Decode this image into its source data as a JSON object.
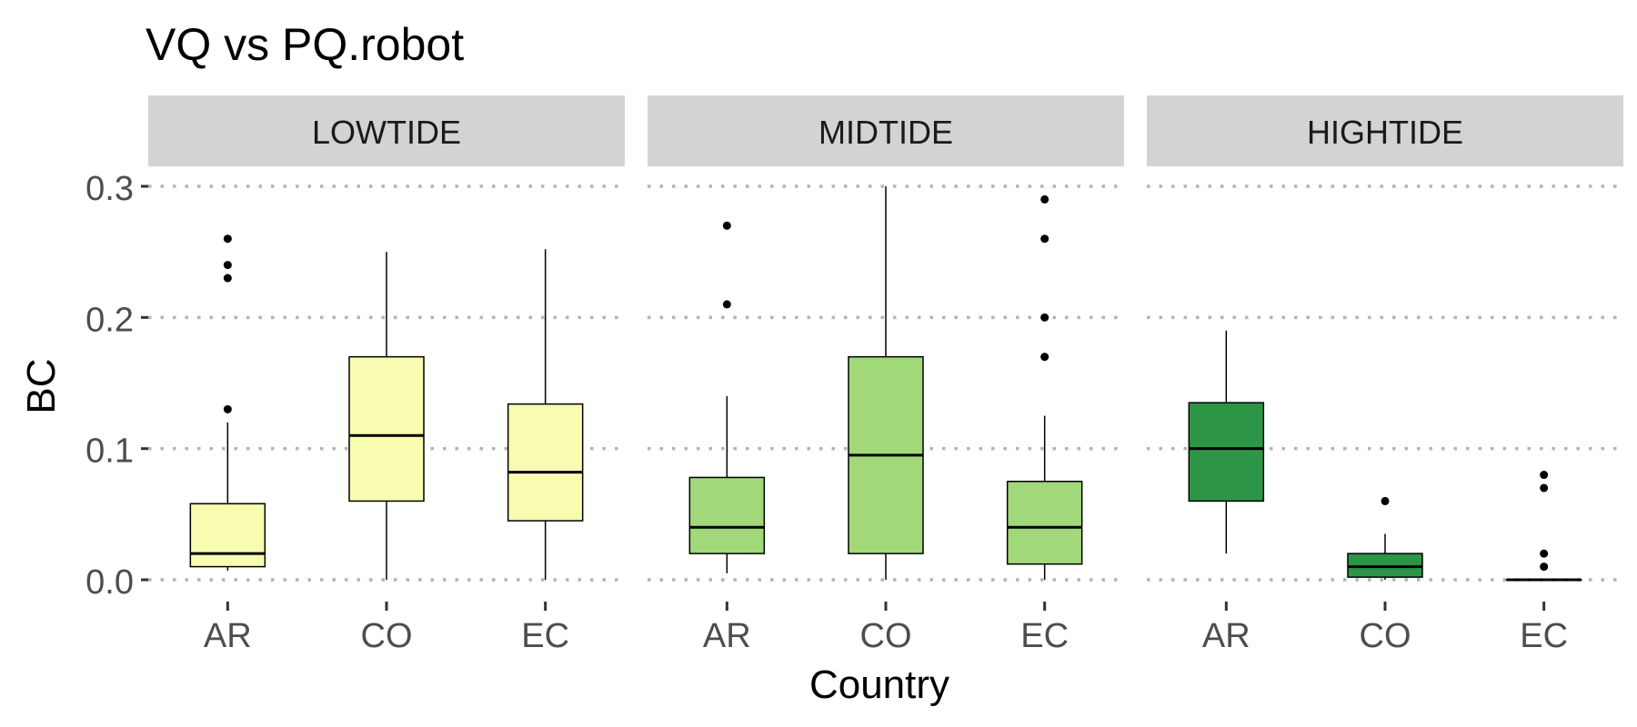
{
  "chart_data": {
    "type": "boxplot",
    "title": "VQ vs PQ.robot",
    "xlabel": "Country",
    "ylabel": "BC",
    "ylim": [
      0,
      0.3
    ],
    "yticks": [
      "0.0",
      "0.1",
      "0.2",
      "0.3"
    ],
    "ytick_values": [
      0,
      0.1,
      0.2,
      0.3
    ],
    "grid": "horizontal-dotted",
    "categories": [
      "AR",
      "CO",
      "EC"
    ],
    "panels": [
      {
        "name": "LOWTIDE",
        "fill": "#f7fcb1",
        "boxes": [
          {
            "category": "AR",
            "whisker_low": 0.007,
            "q1": 0.01,
            "median": 0.02,
            "q3": 0.058,
            "whisker_high": 0.12,
            "outliers": [
              0.13,
              0.23,
              0.24,
              0.26
            ]
          },
          {
            "category": "CO",
            "whisker_low": 0.0,
            "q1": 0.06,
            "median": 0.11,
            "q3": 0.17,
            "whisker_high": 0.25,
            "outliers": []
          },
          {
            "category": "EC",
            "whisker_low": 0.0,
            "q1": 0.045,
            "median": 0.082,
            "q3": 0.134,
            "whisker_high": 0.252,
            "outliers": []
          }
        ]
      },
      {
        "name": "MIDTIDE",
        "fill": "#a1d97a",
        "boxes": [
          {
            "category": "AR",
            "whisker_low": 0.005,
            "q1": 0.02,
            "median": 0.04,
            "q3": 0.078,
            "whisker_high": 0.14,
            "outliers": [
              0.21,
              0.27
            ]
          },
          {
            "category": "CO",
            "whisker_low": 0.0,
            "q1": 0.02,
            "median": 0.095,
            "q3": 0.17,
            "whisker_high": 0.3,
            "outliers": []
          },
          {
            "category": "EC",
            "whisker_low": 0.0,
            "q1": 0.012,
            "median": 0.04,
            "q3": 0.075,
            "whisker_high": 0.125,
            "outliers": [
              0.17,
              0.2,
              0.26,
              0.29
            ]
          }
        ]
      },
      {
        "name": "HIGHTIDE",
        "fill": "#2c9646",
        "boxes": [
          {
            "category": "AR",
            "whisker_low": 0.02,
            "q1": 0.06,
            "median": 0.1,
            "q3": 0.135,
            "whisker_high": 0.19,
            "outliers": []
          },
          {
            "category": "CO",
            "whisker_low": 0.0,
            "q1": 0.002,
            "median": 0.01,
            "q3": 0.02,
            "whisker_high": 0.035,
            "outliers": [
              0.06
            ]
          },
          {
            "category": "EC",
            "whisker_low": 0.0,
            "q1": 0.0,
            "median": 0.0,
            "q3": 0.0,
            "whisker_high": 0.0,
            "outliers": [
              0.01,
              0.02,
              0.07,
              0.08
            ]
          }
        ]
      }
    ],
    "colors": {
      "strip_bg": "#d3d3d3",
      "grid": "#b3b3b3",
      "outline": "#000000",
      "tick_text": "#4d4d4d",
      "axis_text": "#000000"
    }
  }
}
